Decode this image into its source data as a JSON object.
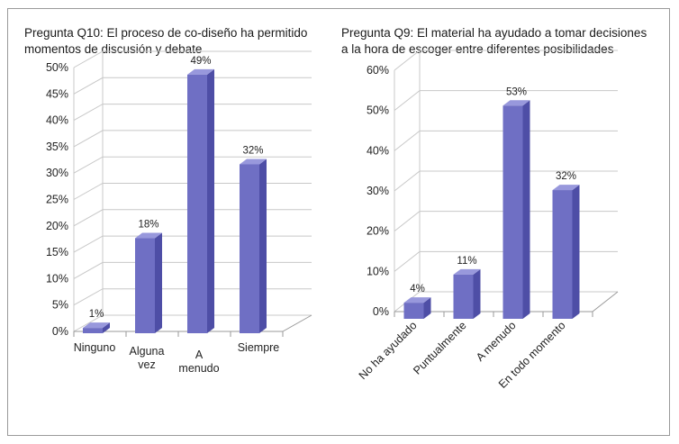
{
  "chart_data": [
    {
      "type": "bar",
      "title": "Pregunta Q10: El proceso de co-diseño ha permitido momentos de discusión y debate",
      "title_lines": [
        "Pregunta Q10: El proceso de co-diseño ha permitido",
        "momentos de discusión y debate"
      ],
      "categories": [
        "Ninguno",
        "Alguna vez",
        "A menudo",
        "Siempre"
      ],
      "category_lines": [
        [
          "Ninguno"
        ],
        [
          "Alguna",
          "vez"
        ],
        [
          "A",
          "menudo"
        ],
        [
          "Siempre"
        ]
      ],
      "values": [
        1,
        18,
        49,
        32
      ],
      "data_labels": [
        "1%",
        "18%",
        "49%",
        "32%"
      ],
      "ylim": [
        0,
        50
      ],
      "y_ticks": [
        "0%",
        "5%",
        "10%",
        "15%",
        "20%",
        "25%",
        "30%",
        "35%",
        "40%",
        "45%",
        "50%"
      ],
      "grid": true,
      "bar_color": "#6f6fc4",
      "style": "3d-column"
    },
    {
      "type": "bar",
      "title": "Pregunta Q9: El material ha ayudado a tomar decisiones a la hora de escoger entre diferentes posibilidades",
      "title_lines": [
        "Pregunta Q9: El material ha ayudado a tomar decisiones",
        "a la hora de escoger entre diferentes posibilidades"
      ],
      "categories": [
        "No ha ayudado",
        "Puntualmente",
        "A menudo",
        "En todo momento"
      ],
      "values": [
        4,
        11,
        53,
        32
      ],
      "data_labels": [
        "4%",
        "11%",
        "53%",
        "32%"
      ],
      "ylim": [
        0,
        60
      ],
      "y_ticks": [
        "0%",
        "10%",
        "20%",
        "30%",
        "40%",
        "50%",
        "60%"
      ],
      "grid": true,
      "bar_color": "#6f6fc4",
      "style": "3d-column",
      "category_label_rotation": "diagonal"
    }
  ]
}
